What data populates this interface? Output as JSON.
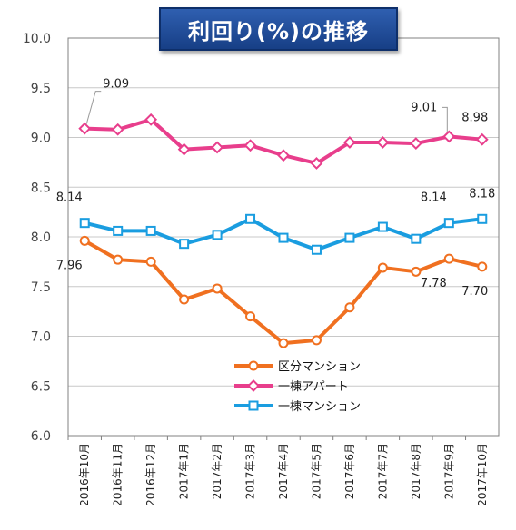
{
  "chart_data": {
    "type": "line",
    "title": "利回り(%)の推移",
    "categories": [
      "2016年10月",
      "2016年11月",
      "2016年12月",
      "2017年1月",
      "2017年2月",
      "2017年3月",
      "2017年4月",
      "2017年5月",
      "2017年6月",
      "2017年7月",
      "2017年8月",
      "2017年9月",
      "2017年10月"
    ],
    "ylim": [
      6.0,
      10.0
    ],
    "yticks": [
      "6.0",
      "6.5",
      "7.0",
      "7.5",
      "8.0",
      "8.5",
      "9.0",
      "9.5",
      "10.0"
    ],
    "grid": true,
    "legend_position": "center",
    "series": [
      {
        "name": "区分マンション",
        "color": "#f07020",
        "marker": "circle",
        "values": [
          7.96,
          7.77,
          7.75,
          7.37,
          7.48,
          7.2,
          6.93,
          6.96,
          7.29,
          7.69,
          7.65,
          7.78,
          7.7
        ]
      },
      {
        "name": "一棟アパート",
        "color": "#e83e8c",
        "marker": "diamond",
        "values": [
          9.09,
          9.08,
          9.18,
          8.88,
          8.9,
          8.92,
          8.82,
          8.74,
          8.95,
          8.95,
          8.94,
          9.01,
          8.98
        ]
      },
      {
        "name": "一棟マンション",
        "color": "#1a9de0",
        "marker": "square",
        "values": [
          8.14,
          8.06,
          8.06,
          7.93,
          8.02,
          8.18,
          7.99,
          7.87,
          7.99,
          8.1,
          7.98,
          8.14,
          8.18
        ]
      }
    ],
    "annotations": [
      "9.09",
      "9.01",
      "8.98",
      "8.14",
      "8.14",
      "8.18",
      "7.96",
      "7.78",
      "7.70"
    ]
  }
}
